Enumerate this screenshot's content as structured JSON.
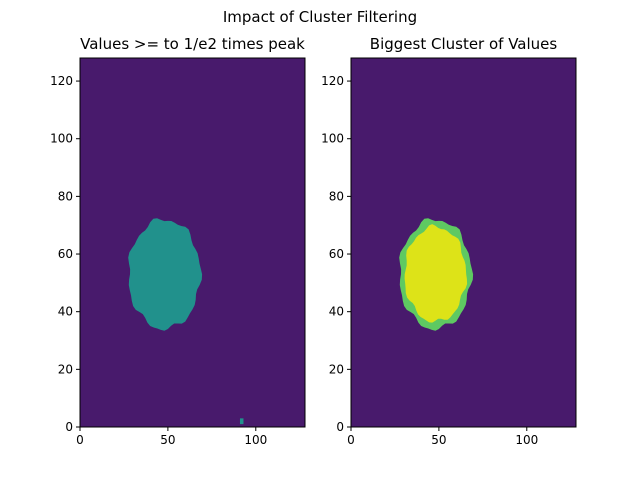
{
  "figure_title": "Impact of Cluster Filtering",
  "colors": {
    "background": "#440154",
    "fill": "#481a6c",
    "mid": "#21918c",
    "light_green": "#5ec962",
    "yellow": "#dde318"
  },
  "chart_data": [
    {
      "type": "heatmap",
      "title": "Values >= to 1/e2 times peak",
      "xlim": [
        0,
        128
      ],
      "ylim": [
        0,
        128
      ],
      "xticks": [
        0,
        50,
        100
      ],
      "yticks": [
        0,
        20,
        40,
        60,
        80,
        100,
        120
      ],
      "grid": false,
      "regions": [
        {
          "name": "blob",
          "value": "mid",
          "cx": 48,
          "cy": 53,
          "rx": 20.5,
          "ry": 19
        },
        {
          "name": "speck",
          "value": "mid",
          "cx": 92,
          "cy": 2,
          "rx": 1,
          "ry": 1
        }
      ]
    },
    {
      "type": "heatmap",
      "title": "Biggest Cluster of Values",
      "xlim": [
        0,
        128
      ],
      "ylim": [
        0,
        128
      ],
      "xticks": [
        0,
        50,
        100
      ],
      "yticks": [
        0,
        20,
        40,
        60,
        80,
        100,
        120
      ],
      "grid": false,
      "regions": [
        {
          "name": "cluster-edge",
          "value": "light_green",
          "cx": 48,
          "cy": 53,
          "rx": 20.5,
          "ry": 19
        },
        {
          "name": "cluster-core",
          "value": "yellow",
          "cx": 48,
          "cy": 53,
          "rx": 17.5,
          "ry": 16.5
        }
      ]
    }
  ]
}
